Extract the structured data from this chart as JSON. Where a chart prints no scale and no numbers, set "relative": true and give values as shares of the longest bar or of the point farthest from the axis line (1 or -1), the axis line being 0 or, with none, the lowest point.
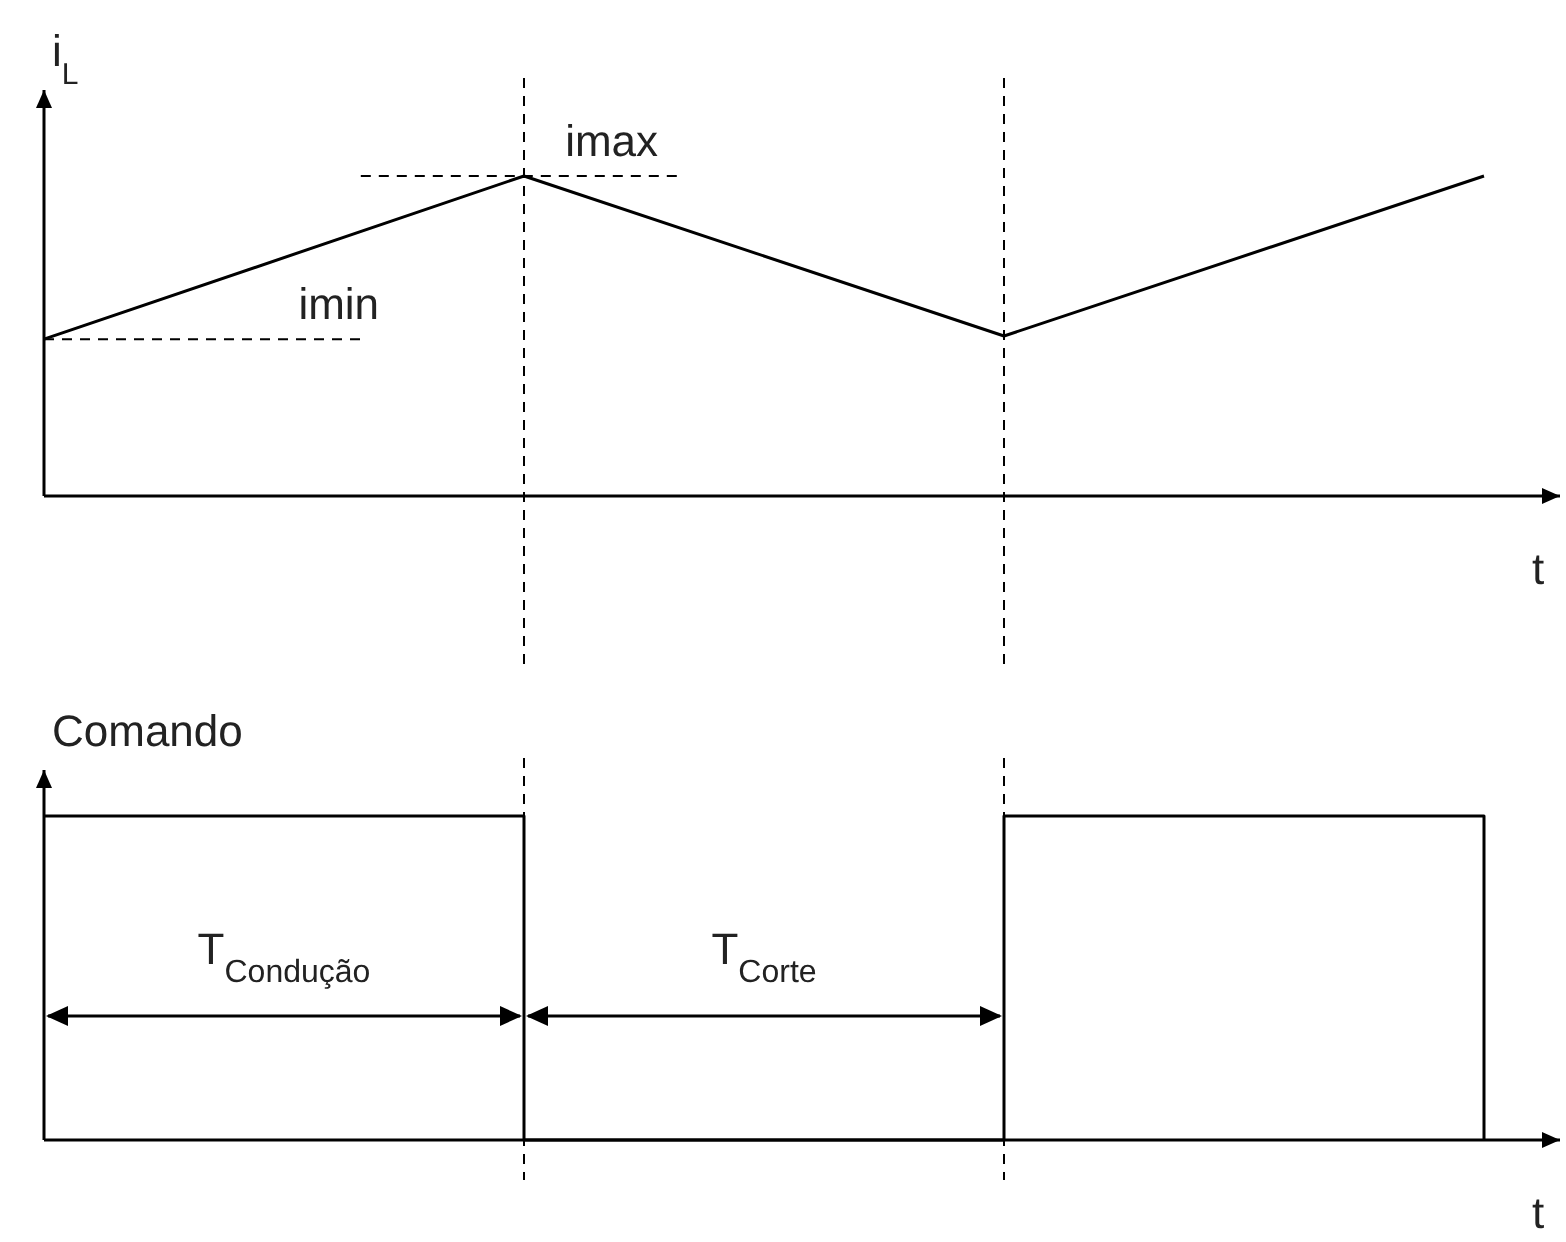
{
  "chart_data": [
    {
      "type": "line",
      "ylabel": "i$_{L}$",
      "xlabel": "t",
      "relative": true,
      "categories": [
        null,
        null,
        null,
        null
      ],
      "series": [
        {
          "color": "#000000",
          "values": [
            0.49,
            1,
            0.5,
            1
          ]
        }
      ],
      "ref_lines": [
        {
          "axis": "y",
          "value": 0.49,
          "label": "imin",
          "line_style": "dashed",
          "color": "#000000"
        },
        {
          "axis": "y",
          "value": 1,
          "label": "imax",
          "line_style": "dashed",
          "color": "#000000"
        }
      ]
    },
    {
      "type": "step",
      "ylabel": "Comando",
      "xlabel": "t",
      "relative": true,
      "categories": [
        null,
        null,
        null,
        null
      ],
      "series": [
        {
          "color": "#000000",
          "values": [
            1,
            0,
            1,
            0
          ]
        }
      ],
      "annotations": [
        "T$_{Condução}$",
        "T$_{Corte}$"
      ]
    }
  ]
}
